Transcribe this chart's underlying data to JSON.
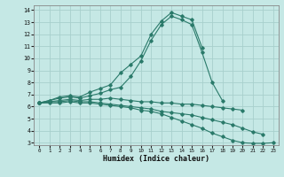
{
  "xlabel": "Humidex (Indice chaleur)",
  "bg_color": "#c5e8e5",
  "line_color": "#2a7a6a",
  "grid_color": "#a8d0cc",
  "xlim": [
    -0.5,
    23.5
  ],
  "ylim": [
    2.8,
    14.4
  ],
  "xticks": [
    0,
    1,
    2,
    3,
    4,
    5,
    6,
    7,
    8,
    9,
    10,
    11,
    12,
    13,
    14,
    15,
    16,
    17,
    18,
    19,
    20,
    21,
    22,
    23
  ],
  "yticks": [
    3,
    4,
    5,
    6,
    7,
    8,
    9,
    10,
    11,
    12,
    13,
    14
  ],
  "curves": [
    {
      "x": [
        0,
        1,
        2,
        3,
        4,
        5,
        6,
        7,
        8,
        9,
        10,
        11,
        12,
        13,
        14,
        15,
        16
      ],
      "y": [
        6.3,
        6.5,
        6.8,
        6.9,
        6.8,
        7.2,
        7.5,
        7.8,
        8.8,
        9.5,
        10.2,
        12.0,
        13.1,
        13.8,
        13.5,
        13.2,
        10.9
      ]
    },
    {
      "x": [
        0,
        1,
        2,
        3,
        4,
        5,
        6,
        7,
        8,
        9,
        10,
        11,
        12,
        13,
        14,
        15,
        16,
        17,
        18
      ],
      "y": [
        6.3,
        6.5,
        6.7,
        6.8,
        6.7,
        6.9,
        7.1,
        7.4,
        7.6,
        8.5,
        9.8,
        11.5,
        12.8,
        13.5,
        13.2,
        12.8,
        10.5,
        8.0,
        6.5
      ]
    },
    {
      "x": [
        0,
        1,
        2,
        3,
        4,
        5,
        6,
        7,
        8,
        9,
        10,
        11,
        12,
        13,
        14,
        15,
        16,
        17,
        18,
        19,
        20
      ],
      "y": [
        6.3,
        6.4,
        6.5,
        6.6,
        6.5,
        6.6,
        6.6,
        6.7,
        6.6,
        6.5,
        6.4,
        6.4,
        6.3,
        6.3,
        6.2,
        6.2,
        6.1,
        6.0,
        5.9,
        5.8,
        5.7
      ]
    },
    {
      "x": [
        0,
        1,
        2,
        3,
        4,
        5,
        6,
        7,
        8,
        9,
        10,
        11,
        12,
        13,
        14,
        15,
        16,
        17,
        18,
        19,
        20,
        21,
        22
      ],
      "y": [
        6.3,
        6.4,
        6.4,
        6.5,
        6.4,
        6.4,
        6.3,
        6.2,
        6.1,
        6.0,
        5.9,
        5.8,
        5.6,
        5.5,
        5.4,
        5.3,
        5.1,
        4.9,
        4.7,
        4.5,
        4.2,
        3.9,
        3.7
      ]
    },
    {
      "x": [
        0,
        1,
        2,
        3,
        4,
        5,
        6,
        7,
        8,
        9,
        10,
        11,
        12,
        13,
        14,
        15,
        16,
        17,
        18,
        19,
        20,
        21,
        22,
        23
      ],
      "y": [
        6.3,
        6.3,
        6.3,
        6.4,
        6.3,
        6.3,
        6.2,
        6.1,
        6.0,
        5.9,
        5.7,
        5.6,
        5.4,
        5.1,
        4.8,
        4.5,
        4.2,
        3.8,
        3.5,
        3.2,
        3.0,
        2.95,
        2.95,
        3.0
      ]
    }
  ]
}
